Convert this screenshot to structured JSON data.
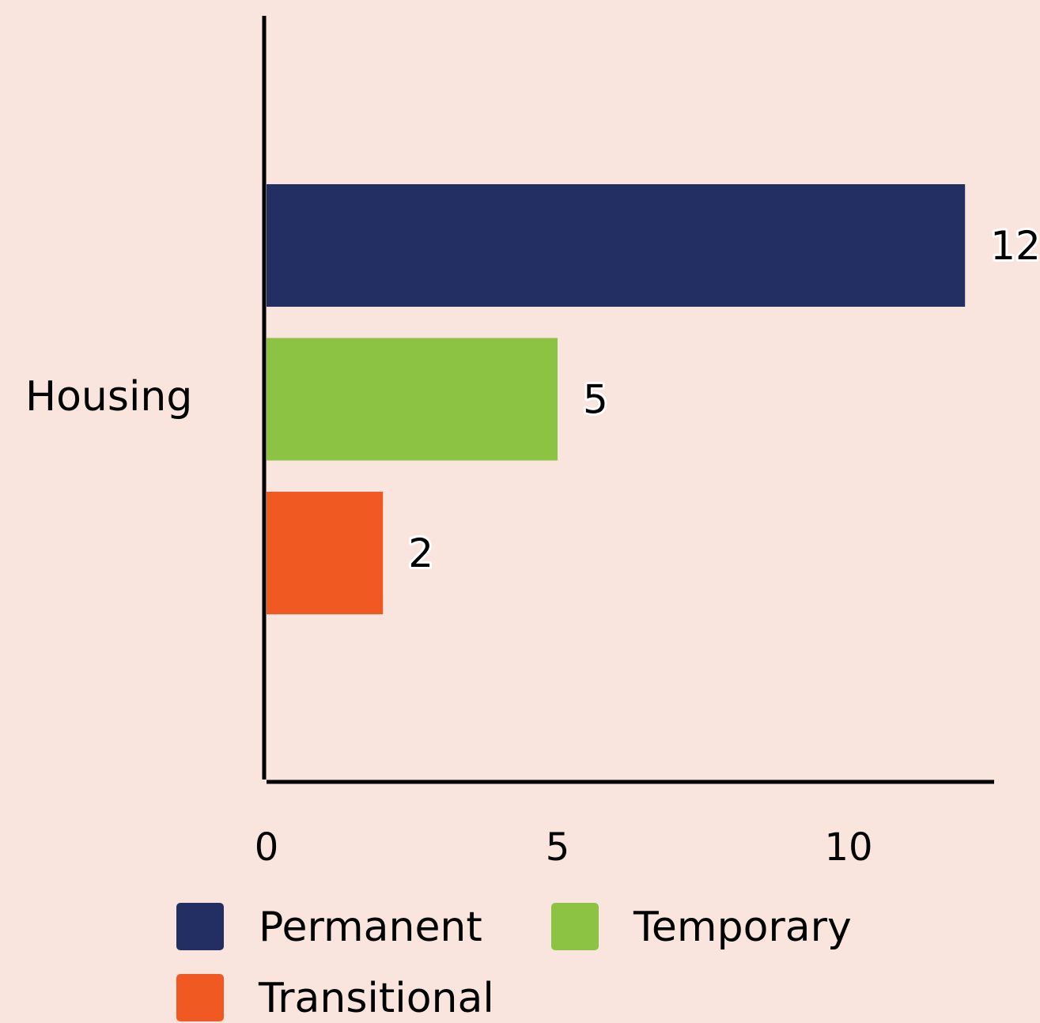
{
  "chart_data": {
    "type": "bar",
    "orientation": "horizontal",
    "categories": [
      "Housing"
    ],
    "series": [
      {
        "name": "Permanent",
        "color": "#232f63",
        "values": [
          12
        ]
      },
      {
        "name": "Temporary",
        "color": "#8dc342",
        "values": [
          5
        ]
      },
      {
        "name": "Transitional",
        "color": "#f05a22",
        "values": [
          2
        ]
      }
    ],
    "xlim": [
      0,
      12.5
    ],
    "xticks": [
      0,
      5,
      10
    ],
    "grid": false,
    "legend": "bottom"
  }
}
